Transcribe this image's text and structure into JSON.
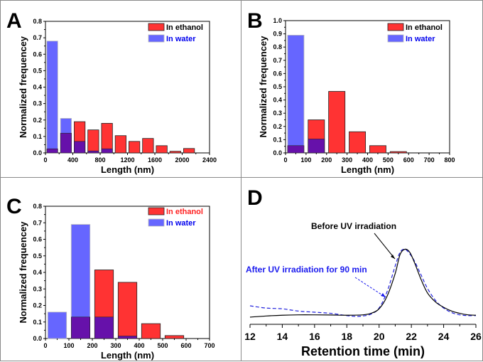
{
  "colors": {
    "ethanol": "#ff3333",
    "water": "#6666ff",
    "overlap": "#6611aa",
    "before_uv": "#000000",
    "after_uv": "#2222dd"
  },
  "chart_data": [
    {
      "panel": "A",
      "type": "bar",
      "title": "",
      "xlabel": "Length (nm)",
      "ylabel": "Normalized frequencey",
      "xlim": [
        0,
        2400
      ],
      "ylim": [
        0,
        0.8
      ],
      "xticks": [
        "0",
        "400",
        "800",
        "1200",
        "1600",
        "2000",
        "2400"
      ],
      "yticks": [
        "0.0",
        "0.1",
        "0.2",
        "0.3",
        "0.4",
        "0.5",
        "0.6",
        "0.7",
        "0.8"
      ],
      "bin_width": 200,
      "bin_starts": [
        0,
        200,
        400,
        600,
        800,
        1000,
        1200,
        1400,
        1600,
        1800,
        2000
      ],
      "legend": {
        "position": "top-right",
        "entries": [
          "In ethanol",
          "In water"
        ]
      },
      "series": [
        {
          "name": "In ethanol",
          "values": [
            0.025,
            0.12,
            0.19,
            0.14,
            0.18,
            0.105,
            0.07,
            0.088,
            0.044,
            0.01,
            0.027
          ]
        },
        {
          "name": "In water",
          "values": [
            0.68,
            0.21,
            0.07,
            0.012,
            0.025,
            0,
            0,
            0,
            0,
            0,
            0
          ]
        }
      ]
    },
    {
      "panel": "B",
      "type": "bar",
      "title": "",
      "xlabel": "Length (nm)",
      "ylabel": "Normalized frequencey",
      "xlim": [
        0,
        800
      ],
      "ylim": [
        0,
        1.0
      ],
      "xticks": [
        "0",
        "100",
        "200",
        "300",
        "400",
        "500",
        "600",
        "700",
        "800"
      ],
      "yticks": [
        "0.0",
        "0.1",
        "0.2",
        "0.3",
        "0.4",
        "0.5",
        "0.6",
        "0.7",
        "0.8",
        "0.9",
        "1.0"
      ],
      "bin_width": 100,
      "bin_starts": [
        0,
        100,
        200,
        300,
        400,
        500
      ],
      "legend": {
        "position": "top-right",
        "entries": [
          "In ethanol",
          "In water"
        ]
      },
      "series": [
        {
          "name": "In ethanol",
          "values": [
            0.055,
            0.25,
            0.465,
            0.16,
            0.055,
            0.01
          ]
        },
        {
          "name": "In water",
          "values": [
            0.89,
            0.105,
            0,
            0,
            0,
            0
          ]
        }
      ]
    },
    {
      "panel": "C",
      "type": "bar",
      "title": "",
      "xlabel": "Length (nm)",
      "ylabel": "Normalized frequencey",
      "xlim": [
        0,
        700
      ],
      "ylim": [
        0,
        0.8
      ],
      "xticks": [
        "0",
        "100",
        "200",
        "300",
        "400",
        "500",
        "600",
        "700"
      ],
      "yticks": [
        "0.0",
        "0.1",
        "0.2",
        "0.3",
        "0.4",
        "0.5",
        "0.6",
        "0.7",
        "0.8"
      ],
      "bin_width": 100,
      "bin_starts": [
        0,
        100,
        200,
        300,
        400,
        500
      ],
      "legend": {
        "position": "top-right",
        "entries": [
          "In ethanol",
          "In water"
        ]
      },
      "series": [
        {
          "name": "In ethanol",
          "values": [
            0,
            0.13,
            0.415,
            0.34,
            0.09,
            0.018
          ]
        },
        {
          "name": "In water",
          "values": [
            0.16,
            0.69,
            0.13,
            0.015,
            0,
            0
          ]
        }
      ]
    },
    {
      "panel": "D",
      "type": "line",
      "title": "",
      "xlabel": "Retention time (min)",
      "ylabel": "",
      "xlim": [
        12,
        26
      ],
      "xticks": [
        "12",
        "14",
        "16",
        "18",
        "20",
        "22",
        "24",
        "26"
      ],
      "y_axis_shown": false,
      "series": [
        {
          "name": "Before UV irradiation",
          "style": "solid",
          "x": [
            12,
            13,
            14,
            15,
            16,
            17,
            18,
            19,
            19.5,
            20,
            20.5,
            21,
            21.3,
            21.6,
            21.9,
            22.2,
            22.6,
            23,
            23.5,
            24,
            24.5,
            25,
            25.5,
            26
          ],
          "y": [
            0.02,
            0.035,
            0.045,
            0.05,
            0.05,
            0.048,
            0.045,
            0.05,
            0.07,
            0.13,
            0.3,
            0.6,
            0.85,
            0.92,
            0.88,
            0.74,
            0.52,
            0.34,
            0.22,
            0.15,
            0.1,
            0.07,
            0.05,
            0.045
          ]
        },
        {
          "name": "After UV irradiation for 90 min",
          "style": "dashed",
          "x": [
            12,
            13,
            14,
            15,
            16,
            17,
            18,
            18.5,
            19,
            19.5,
            20,
            20.5,
            21,
            21.3,
            21.6,
            21.9,
            22.2,
            22.6,
            23,
            23.5,
            24,
            24.5,
            25,
            25.5,
            26
          ],
          "y": [
            0.17,
            0.14,
            0.13,
            0.1,
            0.085,
            0.07,
            0.04,
            0.03,
            0.035,
            0.06,
            0.14,
            0.36,
            0.7,
            0.88,
            0.92,
            0.86,
            0.76,
            0.58,
            0.4,
            0.24,
            0.14,
            0.08,
            0.05,
            0.04,
            0.04
          ]
        }
      ],
      "annotations": [
        "Before UV irradiation",
        "After UV irradiation for 90 min"
      ]
    }
  ]
}
